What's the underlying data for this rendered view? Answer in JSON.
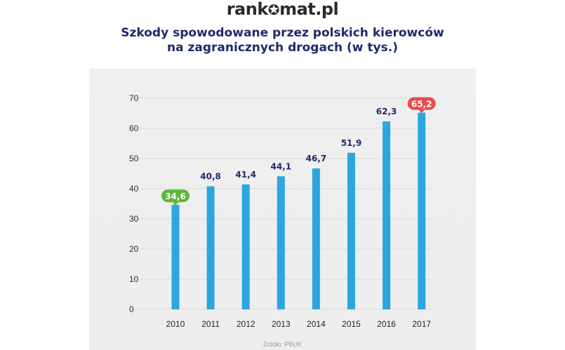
{
  "logo": {
    "text_before": "rank",
    "text_after": "mat.pl"
  },
  "header": {
    "title_line1": "Szkody spowodowane przez polskich kierowców",
    "title_line2": "na zagranicznych drogach (w tys.)"
  },
  "source": "Źródło: PBUK",
  "colors": {
    "bar": "#2ca6de",
    "title": "#1f2a6b",
    "label": "#1f2a6b",
    "min_badge": "#5db53a",
    "max_badge": "#e84c4f",
    "grid": "#d9d9d9"
  },
  "chart_data": {
    "type": "bar",
    "categories": [
      "2010",
      "2011",
      "2012",
      "2013",
      "2014",
      "2015",
      "2016",
      "2017"
    ],
    "values": [
      34.6,
      40.8,
      41.4,
      44.1,
      46.7,
      51.9,
      62.3,
      65.2
    ],
    "value_labels": [
      "34,6",
      "40,8",
      "41,4",
      "44,1",
      "46,7",
      "51,9",
      "62,3",
      "65,2"
    ],
    "title": "Szkody spowodowane przez polskich kierowców na zagranicznych drogach (w tys.)",
    "xlabel": "",
    "ylabel": "",
    "ylim": [
      0,
      70
    ],
    "yticks": [
      "0",
      "10",
      "20",
      "30",
      "40",
      "50",
      "60",
      "70"
    ],
    "grid": true,
    "highlight_min_index": 0,
    "highlight_max_index": 7
  }
}
